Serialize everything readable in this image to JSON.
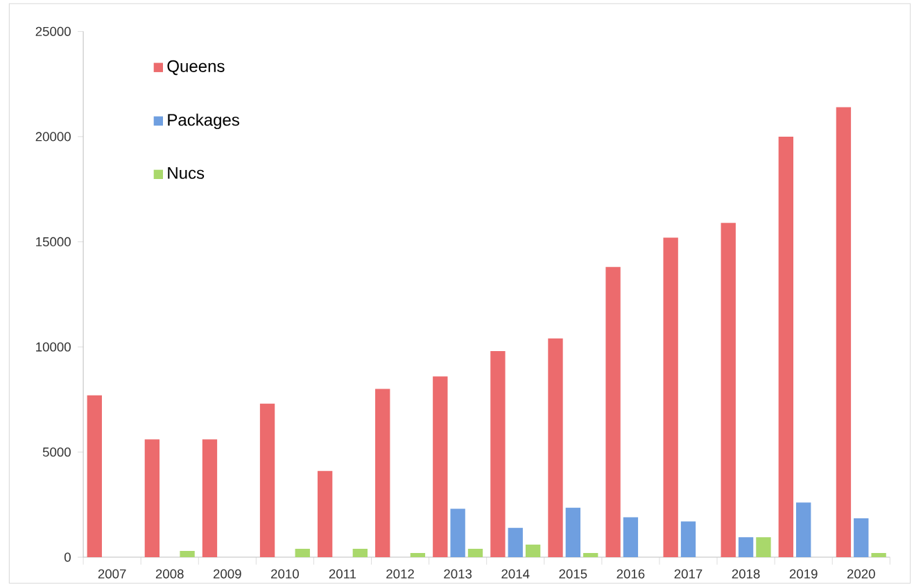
{
  "chart_data": {
    "type": "bar",
    "categories": [
      "2007",
      "2008",
      "2009",
      "2010",
      "2011",
      "2012",
      "2013",
      "2014",
      "2015",
      "2016",
      "2017",
      "2018",
      "2019",
      "2020"
    ],
    "series": [
      {
        "name": "Queens",
        "color": "#ec6b6d",
        "values": [
          7700,
          5600,
          5600,
          7300,
          4100,
          8000,
          8600,
          9800,
          10400,
          13800,
          15200,
          15900,
          20000,
          21400
        ]
      },
      {
        "name": "Packages",
        "color": "#6f9fe0",
        "values": [
          null,
          null,
          null,
          null,
          null,
          null,
          2300,
          1400,
          2350,
          1900,
          1700,
          950,
          2600,
          1850
        ]
      },
      {
        "name": "Nucs",
        "color": "#a9d86b",
        "values": [
          null,
          300,
          null,
          400,
          400,
          200,
          400,
          600,
          200,
          null,
          null,
          950,
          null,
          200
        ]
      }
    ],
    "ylim": [
      0,
      25000
    ],
    "yticks": [
      0,
      5000,
      10000,
      15000,
      20000,
      25000
    ],
    "grid": false,
    "legend": "top left"
  }
}
